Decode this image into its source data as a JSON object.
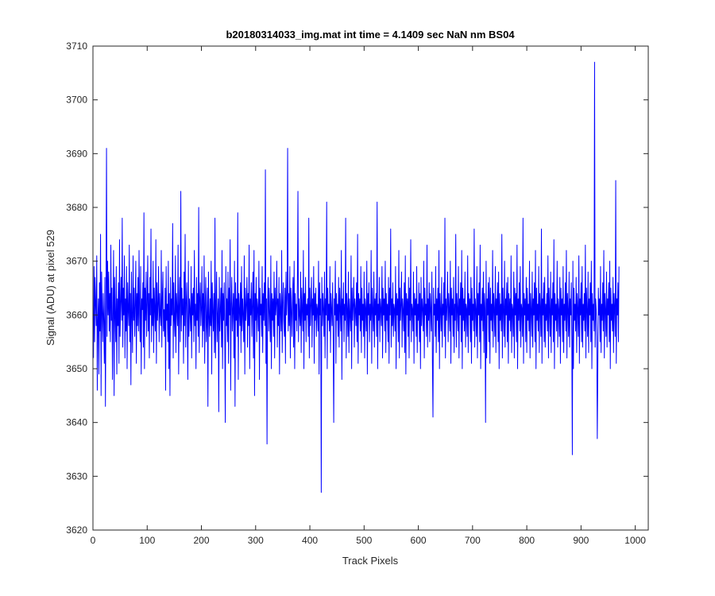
{
  "chart_data": {
    "type": "line",
    "title": "b20180314033_img.mat int time = 4.1409 sec  NaN nm BS04",
    "xlabel": "Track Pixels",
    "ylabel": "Signal (ADU) at pixel 529",
    "xlim": [
      0,
      1024
    ],
    "ylim": [
      3620,
      3710
    ],
    "xticks": [
      0,
      100,
      200,
      300,
      400,
      500,
      600,
      700,
      800,
      900,
      1000
    ],
    "yticks": [
      3620,
      3630,
      3640,
      3650,
      3660,
      3670,
      3680,
      3690,
      3700,
      3710
    ],
    "grid": false,
    "legend": "none",
    "series": [
      {
        "color": "#0000ff",
        "x_start": 1,
        "x_step": 1,
        "values": [
          3652,
          3669,
          3655,
          3667,
          3662,
          3658,
          3671,
          3646,
          3659,
          3663,
          3649,
          3666,
          3657,
          3675,
          3645,
          3668,
          3661,
          3655,
          3664,
          3659,
          3651,
          3667,
          3643,
          3662,
          3691,
          3656,
          3670,
          3660,
          3668,
          3657,
          3664,
          3655,
          3673,
          3659,
          3665,
          3648,
          3661,
          3672,
          3645,
          3667,
          3660,
          3655,
          3669,
          3649,
          3663,
          3658,
          3666,
          3651,
          3674,
          3656,
          3662,
          3667,
          3659,
          3678,
          3654,
          3665,
          3660,
          3671,
          3652,
          3663,
          3657,
          3669,
          3650,
          3666,
          3661,
          3658,
          3673,
          3655,
          3664,
          3647,
          3668,
          3660,
          3653,
          3671,
          3659,
          3665,
          3656,
          3662,
          3670,
          3651,
          3664,
          3658,
          3667,
          3657,
          3672,
          3660,
          3655,
          3669,
          3649,
          3663,
          3661,
          3666,
          3654,
          3679,
          3650,
          3665,
          3659,
          3668,
          3656,
          3662,
          3671,
          3657,
          3664,
          3652,
          3667,
          3660,
          3676,
          3655,
          3663,
          3658,
          3670,
          3653,
          3665,
          3661,
          3657,
          3674,
          3651,
          3666,
          3659,
          3662,
          3669,
          3655,
          3664,
          3660,
          3658,
          3672,
          3654,
          3663,
          3668,
          3657,
          3661,
          3656,
          3665,
          3646,
          3669,
          3659,
          3662,
          3655,
          3670,
          3650,
          3664,
          3645,
          3667,
          3658,
          3663,
          3660,
          3677,
          3652,
          3666,
          3659,
          3656,
          3671,
          3653,
          3664,
          3661,
          3658,
          3673,
          3649,
          3662,
          3667,
          3655,
          3683,
          3657,
          3665,
          3660,
          3663,
          3651,
          3668,
          3658,
          3675,
          3654,
          3662,
          3666,
          3659,
          3648,
          3670,
          3656,
          3663,
          3661,
          3657,
          3669,
          3652,
          3664,
          3660,
          3665,
          3655,
          3672,
          3658,
          3662,
          3650,
          3667,
          3659,
          3664,
          3656,
          3680,
          3653,
          3663,
          3666,
          3658,
          3661,
          3669,
          3654,
          3664,
          3657,
          3671,
          3651,
          3662,
          3667,
          3655,
          3659,
          3665,
          3643,
          3668,
          3660,
          3656,
          3663,
          3658,
          3670,
          3649,
          3666,
          3661,
          3657,
          3664,
          3653,
          3678,
          3652,
          3662,
          3668,
          3655,
          3660,
          3663,
          3642,
          3667,
          3657,
          3661,
          3665,
          3654,
          3672,
          3650,
          3664,
          3659,
          3666,
          3656,
          3640,
          3669,
          3658,
          3663,
          3655,
          3668,
          3651,
          3665,
          3660,
          3674,
          3646,
          3662,
          3667,
          3657,
          3661,
          3664,
          3652,
          3670,
          3643,
          3666,
          3659,
          3663,
          3656,
          3679,
          3648,
          3664,
          3661,
          3658,
          3666,
          3653,
          3669,
          3657,
          3663,
          3660,
          3655,
          3671,
          3649,
          3665,
          3659,
          3662,
          3667,
          3654,
          3664,
          3658,
          3673,
          3650,
          3663,
          3660,
          3666,
          3656,
          3662,
          3668,
          3652,
          3672,
          3645,
          3664,
          3659,
          3667,
          3655,
          3663,
          3661,
          3657,
          3670,
          3648,
          3665,
          3660,
          3662,
          3656,
          3669,
          3653,
          3664,
          3659,
          3666,
          3658,
          3687,
          3651,
          3663,
          3636,
          3662,
          3667,
          3657,
          3665,
          3660,
          3655,
          3671,
          3650,
          3664,
          3659,
          3663,
          3656,
          3668,
          3652,
          3665,
          3660,
          3662,
          3670,
          3654,
          3663,
          3658,
          3667,
          3649,
          3664,
          3661,
          3657,
          3672,
          3653,
          3662,
          3666,
          3659,
          3656,
          3665,
          3651,
          3668,
          3660,
          3663,
          3691,
          3657,
          3664,
          3658,
          3669,
          3652,
          3665,
          3661,
          3656,
          3663,
          3667,
          3654,
          3670,
          3650,
          3664,
          3659,
          3662,
          3657,
          3666,
          3683,
          3655,
          3663,
          3660,
          3658,
          3668,
          3653,
          3665,
          3661,
          3657,
          3672,
          3650,
          3664,
          3659,
          3667,
          3655,
          3662,
          3660,
          3663,
          3656,
          3678,
          3652,
          3665,
          3658,
          3662,
          3667,
          3654,
          3663,
          3660,
          3669,
          3651,
          3664,
          3659,
          3665,
          3656,
          3662,
          3661,
          3657,
          3670,
          3649,
          3666,
          3660,
          3663,
          3627,
          3667,
          3658,
          3664,
          3661,
          3656,
          3668,
          3652,
          3663,
          3660,
          3681,
          3650,
          3665,
          3659,
          3662,
          3657,
          3669,
          3653,
          3664,
          3661,
          3658,
          3666,
          3655,
          3640,
          3663,
          3660,
          3670,
          3651,
          3664,
          3659,
          3662,
          3656,
          3667,
          3654,
          3665,
          3661,
          3657,
          3672,
          3648,
          3663,
          3660,
          3666,
          3655,
          3662,
          3659,
          3678,
          3652,
          3664,
          3661,
          3656,
          3668,
          3653,
          3663,
          3660,
          3657,
          3671,
          3650,
          3665,
          3659,
          3662,
          3667,
          3654,
          3663,
          3661,
          3658,
          3666,
          3655,
          3675,
          3651,
          3664,
          3660,
          3663,
          3657,
          3669,
          3653,
          3665,
          3659,
          3662,
          3656,
          3668,
          3652,
          3663,
          3661,
          3657,
          3670,
          3649,
          3664,
          3660,
          3666,
          3655,
          3662,
          3659,
          3672,
          3651,
          3665,
          3661,
          3657,
          3668,
          3654,
          3663,
          3660,
          3664,
          3656,
          3681,
          3650,
          3662,
          3659,
          3667,
          3655,
          3663,
          3661,
          3658,
          3669,
          3652,
          3665,
          3660,
          3663,
          3657,
          3670,
          3653,
          3664,
          3659,
          3662,
          3655,
          3667,
          3651,
          3665,
          3660,
          3676,
          3654,
          3663,
          3658,
          3666,
          3656,
          3662,
          3661,
          3657,
          3669,
          3650,
          3664,
          3660,
          3663,
          3655,
          3672,
          3652,
          3665,
          3659,
          3662,
          3668,
          3654,
          3663,
          3661,
          3657,
          3666,
          3653,
          3671,
          3649,
          3664,
          3660,
          3663,
          3656,
          3667,
          3652,
          3665,
          3659,
          3674,
          3655,
          3662,
          3661,
          3657,
          3668,
          3651,
          3664,
          3660,
          3663,
          3656,
          3669,
          3653,
          3662,
          3659,
          3666,
          3655,
          3664,
          3650,
          3667,
          3658,
          3663,
          3661,
          3657,
          3670,
          3652,
          3665,
          3660,
          3662,
          3656,
          3673,
          3654,
          3663,
          3659,
          3666,
          3655,
          3664,
          3661,
          3657,
          3668,
          3651,
          3641,
          3665,
          3660,
          3662,
          3656,
          3669,
          3653,
          3663,
          3659,
          3665,
          3655,
          3672,
          3650,
          3664,
          3661,
          3657,
          3667,
          3654,
          3662,
          3660,
          3666,
          3656,
          3678,
          3652,
          3663,
          3659,
          3662,
          3668,
          3655,
          3664,
          3661,
          3657,
          3670,
          3651,
          3665,
          3660,
          3663,
          3656,
          3667,
          3653,
          3662,
          3659,
          3675,
          3654,
          3664,
          3661,
          3657,
          3669,
          3652,
          3663,
          3660,
          3666,
          3655,
          3672,
          3650,
          3665,
          3659,
          3663,
          3657,
          3668,
          3654,
          3662,
          3661,
          3656,
          3671,
          3653,
          3664,
          3660,
          3663,
          3655,
          3667,
          3651,
          3665,
          3659,
          3662,
          3657,
          3676,
          3654,
          3663,
          3661,
          3656,
          3669,
          3652,
          3664,
          3660,
          3666,
          3655,
          3673,
          3650,
          3662,
          3659,
          3665,
          3657,
          3668,
          3653,
          3664,
          3661,
          3640,
          3670,
          3652,
          3663,
          3660,
          3666,
          3655,
          3667,
          3651,
          3665,
          3659,
          3662,
          3657,
          3672,
          3654,
          3664,
          3661,
          3656,
          3669,
          3653,
          3663,
          3660,
          3666,
          3655,
          3668,
          3650,
          3664,
          3659,
          3662,
          3657,
          3675,
          3652,
          3665,
          3661,
          3656,
          3670,
          3654,
          3663,
          3660,
          3666,
          3655,
          3667,
          3651,
          3664,
          3659,
          3663,
          3657,
          3671,
          3653,
          3662,
          3661,
          3656,
          3668,
          3652,
          3665,
          3660,
          3664,
          3655,
          3673,
          3650,
          3663,
          3659,
          3666,
          3657,
          3669,
          3654,
          3662,
          3661,
          3656,
          3678,
          3651,
          3664,
          3660,
          3663,
          3655,
          3667,
          3653,
          3665,
          3659,
          3662,
          3657,
          3670,
          3652,
          3664,
          3661,
          3656,
          3668,
          3654,
          3663,
          3660,
          3666,
          3655,
          3672,
          3650,
          3665,
          3659,
          3662,
          3657,
          3669,
          3653,
          3664,
          3661,
          3656,
          3676,
          3651,
          3663,
          3660,
          3666,
          3655,
          3667,
          3654,
          3662,
          3659,
          3664,
          3657,
          3671,
          3652,
          3665,
          3661,
          3656,
          3668,
          3653,
          3663,
          3660,
          3666,
          3655,
          3674,
          3650,
          3664,
          3659,
          3662,
          3657,
          3670,
          3654,
          3663,
          3661,
          3656,
          3667,
          3651,
          3665,
          3660,
          3663,
          3655,
          3669,
          3653,
          3662,
          3659,
          3666,
          3657,
          3672,
          3652,
          3664,
          3661,
          3656,
          3668,
          3654,
          3663,
          3660,
          3666,
          3655,
          3634,
          3670,
          3650,
          3665,
          3659,
          3662,
          3657,
          3667,
          3653,
          3664,
          3661,
          3656,
          3671,
          3651,
          3663,
          3660,
          3666,
          3655,
          3669,
          3654,
          3662,
          3659,
          3664,
          3657,
          3673,
          3652,
          3665,
          3661,
          3656,
          3668,
          3653,
          3663,
          3660,
          3666,
          3655,
          3670,
          3650,
          3664,
          3659,
          3662,
          3657,
          3707,
          3654,
          3663,
          3661,
          3656,
          3637,
          3651,
          3665,
          3660,
          3663,
          3655,
          3669,
          3653,
          3662,
          3659,
          3666,
          3657,
          3672,
          3652,
          3664,
          3661,
          3656,
          3668,
          3654,
          3663,
          3660,
          3666,
          3655,
          3670,
          3650,
          3665,
          3659,
          3662,
          3657,
          3667,
          3653,
          3664,
          3661,
          3656,
          3685,
          3651,
          3663,
          3660,
          3666,
          3655,
          3669
        ]
      }
    ]
  }
}
